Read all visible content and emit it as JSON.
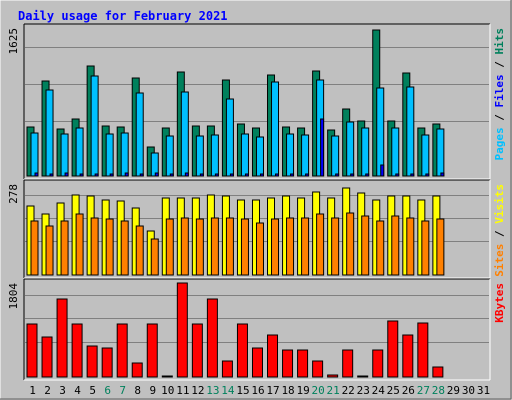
{
  "chart_data": {
    "type": "bar",
    "title": "Daily usage for February 2021",
    "days": [
      "1",
      "2",
      "3",
      "4",
      "5",
      "6",
      "7",
      "8",
      "9",
      "10",
      "11",
      "12",
      "13",
      "14",
      "15",
      "16",
      "17",
      "18",
      "19",
      "20",
      "21",
      "22",
      "23",
      "24",
      "25",
      "26",
      "27",
      "28",
      "29",
      "30",
      "31"
    ],
    "weekend_days": [
      6,
      7,
      13,
      14,
      20,
      21,
      27,
      28
    ],
    "colors": {
      "title": "#0000ff",
      "weekday": "#000000",
      "weekend": "#00805c",
      "hits": "#00805c",
      "files": "#0000ff",
      "pages": "#00c0ff",
      "visits": "#ffff00",
      "sites": "#ff8000",
      "kbytes": "#ff0000",
      "panel_bg": "#c0c0c0"
    },
    "panels": [
      {
        "id": "hits",
        "ymax": 1625,
        "ymax_label": "1625",
        "side_label": {
          "parts": [
            "Pages",
            "Files",
            "Hits"
          ],
          "sep": " / "
        },
        "series": [
          {
            "name": "Hits",
            "values": [
              540,
              1040,
              520,
              630,
              1210,
              545,
              535,
              1080,
              320,
              530,
              1140,
              545,
              545,
              1050,
              570,
              530,
              1110,
              540,
              530,
              1150,
              510,
              740,
              600,
              1600,
              600,
              1130,
              530,
              570,
              0,
              0,
              0
            ]
          },
          {
            "name": "Files",
            "values": [
              30,
              20,
              30,
              20,
              20,
              20,
              30,
              20,
              30,
              20,
              30,
              20,
              20,
              20,
              20,
              20,
              20,
              20,
              20,
              630,
              20,
              20,
              20,
              120,
              20,
              20,
              20,
              30,
              0,
              0,
              0
            ]
          },
          {
            "name": "Pages",
            "values": [
              470,
              940,
              460,
              530,
              1100,
              460,
              470,
              910,
              250,
              440,
              920,
              440,
              445,
              850,
              460,
              430,
              1030,
              460,
              450,
              1050,
              440,
              590,
              530,
              970,
              530,
              980,
              450,
              520,
              0,
              0,
              0
            ]
          }
        ]
      },
      {
        "id": "visits",
        "ymax": 278,
        "ymax_label": "278",
        "side_label": {
          "parts": [
            "Sites",
            "Visits"
          ],
          "sep": " / "
        },
        "series": [
          {
            "name": "Visits",
            "values": [
              210,
              185,
              220,
              245,
              240,
              230,
              225,
              205,
              135,
              235,
              235,
              235,
              245,
              240,
              230,
              230,
              235,
              240,
              235,
              255,
              235,
              265,
              250,
              230,
              240,
              240,
              230,
              240,
              0,
              0,
              0
            ]
          },
          {
            "name": "Sites",
            "values": [
              165,
              150,
              165,
              185,
              175,
              170,
              165,
              150,
              110,
              170,
              175,
              170,
              175,
              175,
              170,
              160,
              170,
              175,
              175,
              185,
              175,
              190,
              180,
              165,
              180,
              175,
              165,
              170,
              0,
              0,
              0
            ]
          }
        ]
      },
      {
        "id": "kbytes",
        "ymax": 1804,
        "ymax_label": "1804",
        "side_label": {
          "parts": [
            "KBytes"
          ],
          "sep": ""
        },
        "series": [
          {
            "name": "KBytes",
            "values": [
              1020,
              760,
              1500,
              1020,
              600,
              560,
              1020,
              270,
              1020,
              10,
              1800,
              1020,
              1500,
              300,
              1020,
              560,
              810,
              510,
              520,
              300,
              40,
              520,
              20,
              520,
              1070,
              800,
              1040,
              190,
              0,
              0,
              0
            ]
          }
        ]
      }
    ]
  }
}
